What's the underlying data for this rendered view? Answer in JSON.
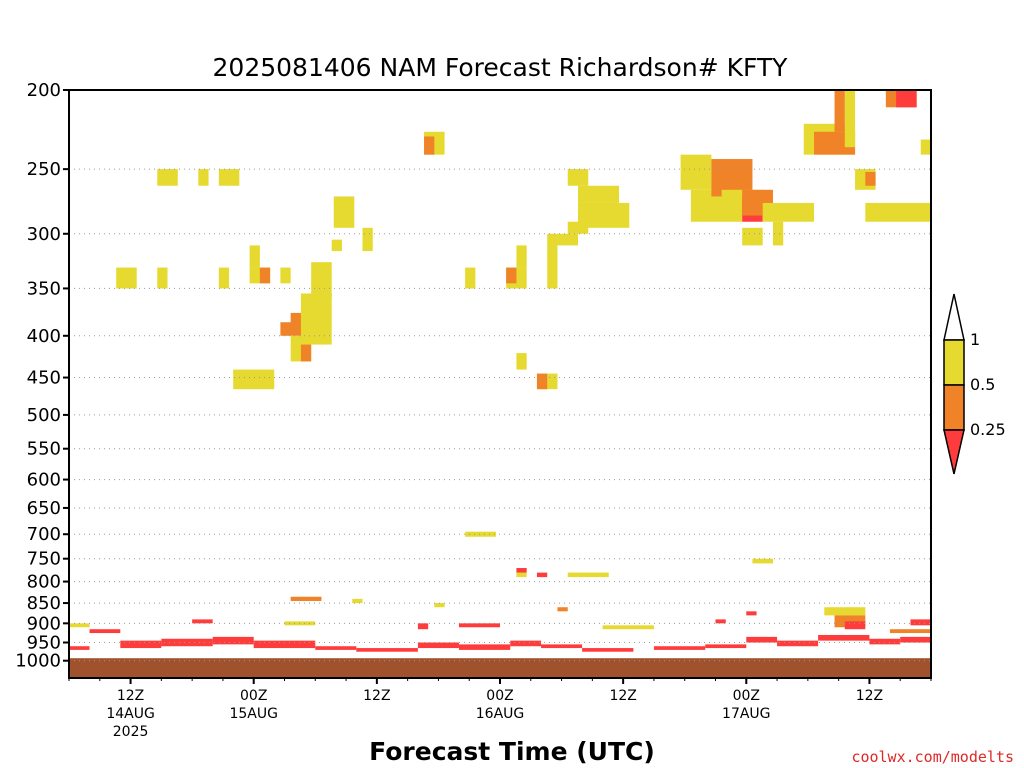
{
  "chart_data": {
    "type": "heatmap",
    "title": "2025081406 NAM Forecast Richardson# KFTY",
    "xlabel": "Forecast Time (UTC)",
    "ylabel": "",
    "credit": "coolwx.com/modelts",
    "y_axis": {
      "scale": "log-pressure",
      "inverted": true,
      "units": "hPa",
      "range": [
        1050,
        200
      ],
      "ticks": [
        "200",
        "250",
        "300",
        "350",
        "400",
        "450",
        "500",
        "550",
        "600",
        "650",
        "700",
        "750",
        "800",
        "850",
        "900",
        "950",
        "1000"
      ]
    },
    "x_axis": {
      "units": "hours since 2025-08-14 06Z",
      "range": [
        0,
        84
      ],
      "ticks": [
        {
          "hour": 6,
          "lines": [
            "12Z",
            "14AUG",
            "2025"
          ]
        },
        {
          "hour": 18,
          "lines": [
            "00Z",
            "15AUG"
          ]
        },
        {
          "hour": 30,
          "lines": [
            "12Z"
          ]
        },
        {
          "hour": 42,
          "lines": [
            "00Z",
            "16AUG"
          ]
        },
        {
          "hour": 54,
          "lines": [
            "12Z"
          ]
        },
        {
          "hour": 66,
          "lines": [
            "00Z",
            "17AUG"
          ]
        },
        {
          "hour": 78,
          "lines": [
            "12Z"
          ]
        }
      ]
    },
    "grid": true,
    "ground_level_hpa": 993,
    "ground_color": "#a0522d",
    "legend": {
      "position": "right",
      "bins": [
        {
          "label": "1",
          "color": "#ffffff"
        },
        {
          "label": "0.5",
          "color": "#e6da30"
        },
        {
          "label": "0.25",
          "color": "#f08228"
        },
        {
          "label": "",
          "color": "#ff3c3c"
        }
      ]
    },
    "categories_legend": [
      {
        "name": "0.5-1",
        "color": "#e6da30"
      },
      {
        "name": "0.25-0.5",
        "color": "#f08228"
      },
      {
        "name": "<0.25",
        "color": "#ff3c3c"
      }
    ],
    "cells": [
      [
        4.6,
        6.6,
        330,
        350,
        "Y"
      ],
      [
        8.6,
        9.6,
        330,
        350,
        "Y"
      ],
      [
        8.6,
        10.6,
        250,
        262,
        "Y"
      ],
      [
        12.6,
        13.6,
        250,
        262,
        "Y"
      ],
      [
        14.6,
        16.6,
        250,
        262,
        "Y"
      ],
      [
        14.6,
        15.6,
        330,
        350,
        "Y"
      ],
      [
        16.0,
        20.0,
        440,
        465,
        "Y"
      ],
      [
        17.6,
        18.6,
        310,
        330,
        "Y"
      ],
      [
        17.6,
        19.6,
        330,
        345,
        "Y"
      ],
      [
        18.6,
        19.6,
        330,
        345,
        "O"
      ],
      [
        20.6,
        21.6,
        330,
        345,
        "Y"
      ],
      [
        20.6,
        24.6,
        385,
        400,
        "O"
      ],
      [
        21.6,
        24.6,
        375,
        390,
        "O"
      ],
      [
        21.6,
        23.6,
        400,
        430,
        "Y"
      ],
      [
        22.6,
        23.6,
        410,
        430,
        "O"
      ],
      [
        22.6,
        25.6,
        355,
        410,
        "Y"
      ],
      [
        23.6,
        25.6,
        325,
        360,
        "Y"
      ],
      [
        25.8,
        27.8,
        270,
        295,
        "Y"
      ],
      [
        25.6,
        26.6,
        305,
        315,
        "Y"
      ],
      [
        28.6,
        29.6,
        295,
        315,
        "Y"
      ],
      [
        34.6,
        36.6,
        225,
        240,
        "Y"
      ],
      [
        34.6,
        35.6,
        228,
        240,
        "O"
      ],
      [
        38.6,
        39.6,
        330,
        350,
        "Y"
      ],
      [
        42.6,
        44.6,
        330,
        350,
        "Y"
      ],
      [
        42.6,
        43.6,
        330,
        345,
        "O"
      ],
      [
        43.6,
        44.6,
        310,
        330,
        "Y"
      ],
      [
        43.6,
        44.6,
        420,
        440,
        "Y"
      ],
      [
        45.6,
        47.6,
        445,
        465,
        "Y"
      ],
      [
        45.6,
        46.6,
        445,
        465,
        "O"
      ],
      [
        46.6,
        47.6,
        300,
        350,
        "Y"
      ],
      [
        47.6,
        49.6,
        300,
        310,
        "Y"
      ],
      [
        48.6,
        50.6,
        290,
        300,
        "Y"
      ],
      [
        48.6,
        50.6,
        250,
        262,
        "Y"
      ],
      [
        49.6,
        54.6,
        275,
        295,
        "Y"
      ],
      [
        49.6,
        53.6,
        262,
        275,
        "Y"
      ],
      [
        59.6,
        62.6,
        240,
        265,
        "Y"
      ],
      [
        60.6,
        65.6,
        265,
        290,
        "Y"
      ],
      [
        62.6,
        66.6,
        243,
        270,
        "O"
      ],
      [
        63.6,
        67.6,
        265,
        285,
        "Y"
      ],
      [
        65.6,
        67.6,
        270,
        290,
        "R"
      ],
      [
        65.6,
        68.6,
        265,
        285,
        "O"
      ],
      [
        67.6,
        72.6,
        275,
        290,
        "Y"
      ],
      [
        65.6,
        67.6,
        295,
        310,
        "Y"
      ],
      [
        68.6,
        69.6,
        290,
        310,
        "Y"
      ],
      [
        71.6,
        76.6,
        220,
        240,
        "Y"
      ],
      [
        72.6,
        76.6,
        225,
        240,
        "O"
      ],
      [
        75.6,
        76.6,
        200,
        235,
        "Y"
      ],
      [
        74.6,
        75.6,
        200,
        225,
        "O"
      ],
      [
        76.6,
        78.6,
        250,
        265,
        "Y"
      ],
      [
        77.6,
        78.6,
        252,
        262,
        "O"
      ],
      [
        77.6,
        84.0,
        275,
        290,
        "Y"
      ],
      [
        79.6,
        82.6,
        200,
        210,
        "O"
      ],
      [
        80.6,
        82.6,
        200,
        210,
        "R"
      ],
      [
        83.0,
        84.0,
        230,
        240,
        "Y"
      ],
      [
        38.6,
        41.6,
        695,
        705,
        "Y"
      ],
      [
        43.6,
        44.6,
        780,
        790,
        "Y"
      ],
      [
        43.6,
        44.6,
        770,
        780,
        "R"
      ],
      [
        45.6,
        46.6,
        780,
        790,
        "R"
      ],
      [
        48.6,
        52.6,
        780,
        790,
        "Y"
      ],
      [
        66.6,
        68.6,
        750,
        760,
        "Y"
      ],
      [
        21.6,
        24.6,
        835,
        845,
        "O"
      ],
      [
        27.6,
        28.6,
        840,
        850,
        "Y"
      ],
      [
        35.6,
        36.6,
        850,
        860,
        "Y"
      ],
      [
        47.6,
        48.6,
        860,
        870,
        "O"
      ],
      [
        73.6,
        77.6,
        860,
        880,
        "Y"
      ],
      [
        74.6,
        77.6,
        880,
        910,
        "O"
      ],
      [
        75.6,
        77.6,
        895,
        915,
        "R"
      ]
    ],
    "boundary_layer_bands": [
      [
        0,
        2,
        960,
        970,
        "R"
      ],
      [
        0,
        2,
        900,
        910,
        "Y"
      ],
      [
        2,
        5,
        915,
        925,
        "R"
      ],
      [
        5,
        9,
        945,
        965,
        "R"
      ],
      [
        9,
        14,
        940,
        960,
        "R"
      ],
      [
        12,
        14,
        890,
        900,
        "R"
      ],
      [
        14,
        18,
        935,
        955,
        "R"
      ],
      [
        18,
        24,
        945,
        965,
        "R"
      ],
      [
        21,
        24,
        895,
        905,
        "Y"
      ],
      [
        24,
        28,
        960,
        970,
        "R"
      ],
      [
        28,
        34,
        965,
        975,
        "R"
      ],
      [
        34,
        38,
        950,
        965,
        "R"
      ],
      [
        34,
        35,
        900,
        915,
        "R"
      ],
      [
        38,
        43,
        955,
        970,
        "R"
      ],
      [
        38,
        42,
        900,
        910,
        "R"
      ],
      [
        43,
        46,
        945,
        960,
        "R"
      ],
      [
        46,
        50,
        955,
        965,
        "R"
      ],
      [
        50,
        55,
        965,
        975,
        "R"
      ],
      [
        52,
        57,
        905,
        915,
        "Y"
      ],
      [
        57,
        62,
        960,
        970,
        "R"
      ],
      [
        62,
        66,
        955,
        965,
        "R"
      ],
      [
        63,
        64,
        890,
        900,
        "R"
      ],
      [
        66,
        69,
        935,
        950,
        "R"
      ],
      [
        66,
        67,
        870,
        880,
        "R"
      ],
      [
        69,
        73,
        945,
        960,
        "R"
      ],
      [
        73,
        78,
        930,
        945,
        "R"
      ],
      [
        78,
        81,
        940,
        955,
        "R"
      ],
      [
        81,
        84,
        935,
        950,
        "R"
      ],
      [
        82,
        84,
        890,
        905,
        "R"
      ],
      [
        80,
        84,
        915,
        925,
        "O"
      ]
    ]
  }
}
